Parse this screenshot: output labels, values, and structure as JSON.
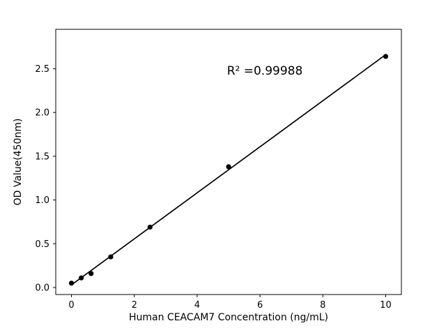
{
  "chart_data": {
    "type": "scatter",
    "title": "",
    "xlabel": "Human CEACAM7 Concentration (ng/mL)",
    "ylabel": "OD Value(450nm)",
    "annotation": "R² =0.99988",
    "x": [
      0,
      0.3125,
      0.625,
      1.25,
      2.5,
      5,
      10
    ],
    "y": [
      0.05,
      0.11,
      0.16,
      0.35,
      0.69,
      1.38,
      2.64
    ],
    "fit_line": {
      "x": [
        0,
        10
      ],
      "y": [
        0.03,
        2.66
      ]
    },
    "xlim": [
      -0.5,
      10.5
    ],
    "ylim": [
      -0.08,
      2.95
    ],
    "xticks": [
      0,
      2,
      4,
      6,
      8,
      10
    ],
    "xtick_labels": [
      "0",
      "2",
      "4",
      "6",
      "8",
      "10"
    ],
    "yticks": [
      0.0,
      0.5,
      1.0,
      1.5,
      2.0,
      2.5
    ],
    "ytick_labels": [
      "0.0",
      "0.5",
      "1.0",
      "1.5",
      "2.0",
      "2.5"
    ],
    "grid": false,
    "legend": null,
    "marker_color": "#000000",
    "line_color": "#000000",
    "background_color": "#ffffff"
  }
}
